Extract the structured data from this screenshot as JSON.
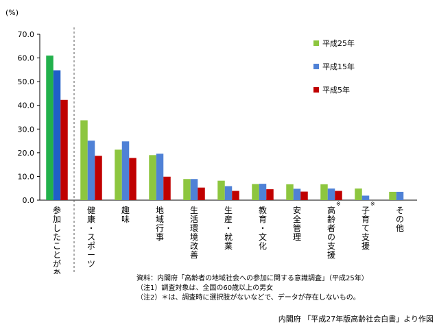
{
  "chart_data": {
    "type": "bar",
    "y_unit_label": "(%)",
    "ylim": [
      0,
      70
    ],
    "y_ticks": [
      "0.0",
      "10.0",
      "20.0",
      "30.0",
      "40.0",
      "50.0",
      "60.0",
      "70.0"
    ],
    "grid": false,
    "legend_position": "top-right",
    "categories": [
      "参加したことがある",
      "健康・スポーツ",
      "趣味",
      "地域行事",
      "生活環境改善",
      "生産・就業",
      "教育・文化",
      "安全管理",
      "高齢者の支援",
      "子育て支援",
      "その他"
    ],
    "category_marks": [
      "",
      "",
      "",
      "",
      "",
      "",
      "",
      "",
      "※",
      "※",
      ""
    ],
    "series": [
      {
        "name": "平成25年",
        "color": "#8dc63f",
        "first_color": "#22b14c",
        "values": [
          61.0,
          33.7,
          21.3,
          19.0,
          8.9,
          8.2,
          6.8,
          6.7,
          6.7,
          4.9,
          3.5
        ]
      },
      {
        "name": "平成15年",
        "color": "#4f81d6",
        "first_color": "#1f5fc8",
        "values": [
          54.8,
          25.1,
          24.8,
          19.6,
          8.9,
          5.9,
          6.9,
          4.8,
          4.9,
          1.9,
          3.5
        ]
      },
      {
        "name": "平成5年",
        "color": "#c00000",
        "first_color": "#c00000",
        "values": [
          42.3,
          18.7,
          17.8,
          9.9,
          5.3,
          3.9,
          4.6,
          3.6,
          3.9,
          null,
          null
        ]
      }
    ]
  },
  "notes": {
    "source": "資料：内閣府「高齢者の地域社会への参加に関する意識調査」（平成25年）",
    "note1": "（注1）調査対象は、全国の60歳以上の男女",
    "note2": "（注2）＊は、調査時に選択肢がないなどで、データが存在しないもの。"
  },
  "credit": "内閣府 「平成27年版高齢社会白書」より作図"
}
